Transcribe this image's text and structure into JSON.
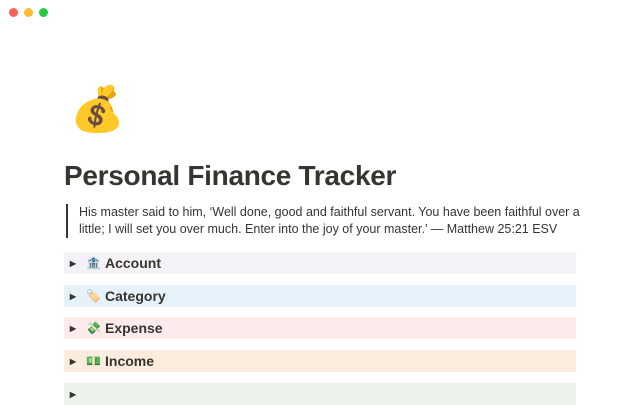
{
  "window": {
    "controls": [
      {
        "name": "close",
        "color": "#ff5f57"
      },
      {
        "name": "minimize",
        "color": "#febc2e"
      },
      {
        "name": "maximize",
        "color": "#28c840"
      }
    ]
  },
  "page": {
    "icon": "💰",
    "title": "Personal Finance Tracker",
    "quote": "His master said to him, ‘Well done, good and faithful servant. You have been faithful over a little; I will set you over much. Enter into the joy of your master.’ — Matthew 25:21 ESV"
  },
  "toggles": [
    {
      "emoji": "🏦",
      "label": "Account",
      "bg": "#f4f2f7"
    },
    {
      "emoji": "🏷️",
      "label": "Category",
      "bg": "#e6f2f9"
    },
    {
      "emoji": "💸",
      "label": "Expense",
      "bg": "#fdebec"
    },
    {
      "emoji": "💵",
      "label": "Income",
      "bg": "#fbecdd"
    },
    {
      "emoji": "",
      "label": "",
      "bg": "#edf3ec"
    }
  ]
}
